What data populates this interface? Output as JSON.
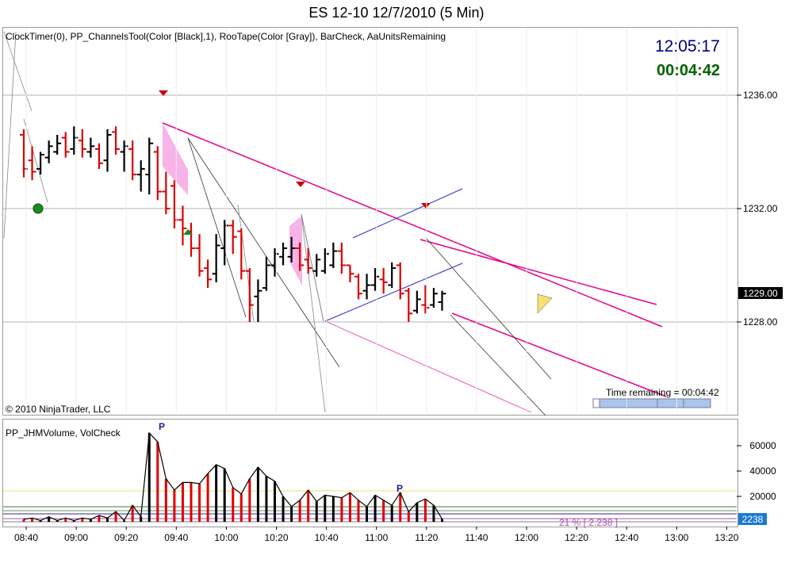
{
  "title": "ES 12-10  12/7/2010 (5 Min)",
  "price_indicators": "ClockTimer(0),  PP_ChannelsTool(Color  [Black],1),  RooTape(Color  [Gray]),  BarCheck,  AaUnitsRemaining",
  "volume_indicators": "PP_JHMVolume, VolCheck",
  "clock_time": "12:05:17",
  "clock_remaining": "00:04:42",
  "copyright": "© 2010 NinjaTrader, LLC",
  "time_remaining_label": "Time remaining = 00:04:42",
  "volume_percent_label": "21 % [ 2.238 ]",
  "colors": {
    "up": "#000000",
    "down": "#dd0000",
    "channel": "#e8008a",
    "channel_light": "#f070c0",
    "blue": "#2a2ad0",
    "gray": "#9a9a9a",
    "fill_pink": "#f59ae0",
    "yellow": "#f6e070"
  },
  "chart_data": {
    "type": "bar",
    "price_axis": {
      "ticks": [
        "1236.00",
        "1232.00",
        "1228.00"
      ],
      "values": [
        1236,
        1232,
        1228
      ],
      "ylim": [
        1225.3,
        1238.2
      ]
    },
    "current_price_label": "1229.00",
    "x_tick_labels": [
      "08:40",
      "09:00",
      "09:20",
      "09:40",
      "10:00",
      "10:20",
      "10:40",
      "11:00",
      "11:20",
      "11:40",
      "12:00",
      "12:20",
      "12:40",
      "13:00",
      "13:20"
    ],
    "volume_axis": {
      "ticks": [
        "60000",
        "40000",
        "20000"
      ],
      "values": [
        60000,
        40000,
        20000
      ],
      "ylim": [
        0,
        75000
      ]
    },
    "current_volume_label": "2238",
    "bars": [
      {
        "o": 1234.6,
        "h": 1234.8,
        "l": 1233.1,
        "c": 1233.4
      },
      {
        "o": 1233.7,
        "h": 1234.2,
        "l": 1233.0,
        "c": 1233.3
      },
      {
        "o": 1233.4,
        "h": 1234.0,
        "l": 1233.2,
        "c": 1233.9
      },
      {
        "o": 1233.8,
        "h": 1234.4,
        "l": 1233.6,
        "c": 1234.2
      },
      {
        "o": 1234.0,
        "h": 1234.6,
        "l": 1233.9,
        "c": 1234.3
      },
      {
        "o": 1234.5,
        "h": 1234.7,
        "l": 1233.8,
        "c": 1234.0
      },
      {
        "o": 1234.1,
        "h": 1234.9,
        "l": 1233.9,
        "c": 1234.5
      },
      {
        "o": 1234.4,
        "h": 1234.8,
        "l": 1233.8,
        "c": 1234.1
      },
      {
        "o": 1234.0,
        "h": 1234.5,
        "l": 1233.8,
        "c": 1234.2
      },
      {
        "o": 1234.1,
        "h": 1234.3,
        "l": 1233.4,
        "c": 1233.6
      },
      {
        "o": 1233.7,
        "h": 1234.8,
        "l": 1233.3,
        "c": 1234.6
      },
      {
        "o": 1234.7,
        "h": 1234.9,
        "l": 1233.9,
        "c": 1234.1
      },
      {
        "o": 1234.0,
        "h": 1234.4,
        "l": 1233.3,
        "c": 1234.2
      },
      {
        "o": 1234.1,
        "h": 1234.4,
        "l": 1233.0,
        "c": 1233.2
      },
      {
        "o": 1233.2,
        "h": 1233.7,
        "l": 1232.6,
        "c": 1233.4
      },
      {
        "o": 1233.2,
        "h": 1234.5,
        "l": 1232.5,
        "c": 1234.3
      },
      {
        "o": 1234.0,
        "h": 1234.2,
        "l": 1232.3,
        "c": 1232.6
      },
      {
        "o": 1232.6,
        "h": 1233.3,
        "l": 1231.8,
        "c": 1232.0
      },
      {
        "o": 1232.8,
        "h": 1233.0,
        "l": 1231.3,
        "c": 1231.6
      },
      {
        "o": 1231.6,
        "h": 1232.1,
        "l": 1230.7,
        "c": 1231.3
      },
      {
        "o": 1231.2,
        "h": 1231.5,
        "l": 1230.3,
        "c": 1230.6
      },
      {
        "o": 1230.6,
        "h": 1231.1,
        "l": 1229.6,
        "c": 1229.8
      },
      {
        "o": 1229.9,
        "h": 1230.2,
        "l": 1229.2,
        "c": 1229.5
      },
      {
        "o": 1229.7,
        "h": 1231.1,
        "l": 1229.4,
        "c": 1230.7
      },
      {
        "o": 1230.6,
        "h": 1231.6,
        "l": 1230.0,
        "c": 1231.4
      },
      {
        "o": 1231.4,
        "h": 1231.6,
        "l": 1230.4,
        "c": 1231.0
      },
      {
        "o": 1231.2,
        "h": 1231.3,
        "l": 1229.5,
        "c": 1229.8
      },
      {
        "o": 1229.8,
        "h": 1229.9,
        "l": 1228.0,
        "c": 1228.6
      },
      {
        "o": 1228.9,
        "h": 1229.5,
        "l": 1228.0,
        "c": 1229.1
      },
      {
        "o": 1229.2,
        "h": 1230.3,
        "l": 1229.1,
        "c": 1230.0
      },
      {
        "o": 1230.0,
        "h": 1230.6,
        "l": 1229.6,
        "c": 1230.4
      },
      {
        "o": 1230.3,
        "h": 1230.8,
        "l": 1230.0,
        "c": 1230.6
      },
      {
        "o": 1230.3,
        "h": 1231.0,
        "l": 1230.1,
        "c": 1230.6
      },
      {
        "o": 1230.6,
        "h": 1230.8,
        "l": 1229.8,
        "c": 1230.0
      },
      {
        "o": 1230.2,
        "h": 1230.6,
        "l": 1229.7,
        "c": 1229.9
      },
      {
        "o": 1229.8,
        "h": 1230.4,
        "l": 1229.6,
        "c": 1230.2
      },
      {
        "o": 1229.8,
        "h": 1230.6,
        "l": 1229.7,
        "c": 1230.4
      },
      {
        "o": 1230.0,
        "h": 1230.8,
        "l": 1229.9,
        "c": 1230.5
      },
      {
        "o": 1230.5,
        "h": 1230.8,
        "l": 1229.7,
        "c": 1230.0
      },
      {
        "o": 1230.0,
        "h": 1230.0,
        "l": 1229.4,
        "c": 1229.7
      },
      {
        "o": 1229.6,
        "h": 1229.7,
        "l": 1228.8,
        "c": 1229.0
      },
      {
        "o": 1229.1,
        "h": 1229.7,
        "l": 1228.8,
        "c": 1229.3
      },
      {
        "o": 1229.3,
        "h": 1229.9,
        "l": 1229.1,
        "c": 1229.6
      },
      {
        "o": 1229.5,
        "h": 1229.9,
        "l": 1229.0,
        "c": 1229.4
      },
      {
        "o": 1229.3,
        "h": 1230.1,
        "l": 1229.2,
        "c": 1229.9
      },
      {
        "o": 1230.0,
        "h": 1230.1,
        "l": 1228.8,
        "c": 1229.0
      },
      {
        "o": 1229.1,
        "h": 1229.2,
        "l": 1228.0,
        "c": 1228.3
      },
      {
        "o": 1228.4,
        "h": 1229.1,
        "l": 1228.3,
        "c": 1228.8
      },
      {
        "o": 1228.6,
        "h": 1229.3,
        "l": 1228.3,
        "c": 1228.5
      },
      {
        "o": 1228.6,
        "h": 1229.2,
        "l": 1228.5,
        "c": 1229.0
      },
      {
        "o": 1228.7,
        "h": 1229.1,
        "l": 1228.4,
        "c": 1229.0
      }
    ],
    "volume": [
      2000,
      3000,
      1000,
      4000,
      1000,
      3000,
      1000,
      3000,
      2000,
      5000,
      3000,
      8000,
      1000,
      13000,
      4000,
      70000,
      63000,
      34000,
      25000,
      31000,
      31000,
      30000,
      38000,
      45000,
      42000,
      27000,
      22000,
      34000,
      43000,
      36000,
      32000,
      20000,
      12000,
      17000,
      25000,
      16000,
      21000,
      20000,
      19000,
      23000,
      17000,
      12000,
      21000,
      17000,
      13000,
      23000,
      8000,
      15000,
      18000,
      13000,
      2238
    ]
  }
}
